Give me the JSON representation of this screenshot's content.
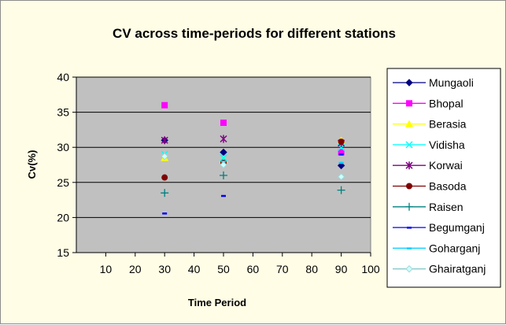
{
  "chart_data": {
    "type": "scatter",
    "title": "CV across time-periods for different stations",
    "xlabel": "Time Period",
    "ylabel": "Cv(%)",
    "xlim": [
      0,
      100
    ],
    "ylim": [
      15,
      40
    ],
    "xticks": [
      10,
      20,
      30,
      40,
      50,
      60,
      70,
      80,
      90,
      100
    ],
    "yticks": [
      15,
      20,
      25,
      30,
      35,
      40
    ],
    "grid": "horizontal",
    "legend_position": "right",
    "plot_background": "#c0c0c0",
    "page_background": "#fffde6",
    "series": [
      {
        "name": "Mungaoli",
        "color": "#000080",
        "marker": "diamond",
        "x": [
          30,
          50,
          90
        ],
        "y": [
          31.0,
          29.3,
          27.4
        ]
      },
      {
        "name": "Bhopal",
        "color": "#ff00ff",
        "marker": "square",
        "x": [
          30,
          50,
          90
        ],
        "y": [
          36.0,
          33.5,
          29.3
        ]
      },
      {
        "name": "Berasia",
        "color": "#ffff00",
        "marker": "triangle",
        "x": [
          30,
          50,
          90
        ],
        "y": [
          28.5,
          28.3,
          31.0
        ]
      },
      {
        "name": "Vidisha",
        "color": "#00ffff",
        "marker": "x",
        "x": [
          30,
          50,
          90
        ],
        "y": [
          29.0,
          28.5,
          30.0
        ]
      },
      {
        "name": "Korwai",
        "color": "#800080",
        "marker": "star",
        "x": [
          30,
          50,
          90
        ],
        "y": [
          31.0,
          31.2,
          30.6
        ]
      },
      {
        "name": "Basoda",
        "color": "#800000",
        "marker": "circle",
        "x": [
          30,
          50,
          90
        ],
        "y": [
          25.7,
          27.8,
          30.8
        ]
      },
      {
        "name": "Raisen",
        "color": "#008080",
        "marker": "plus",
        "x": [
          30,
          50,
          90
        ],
        "y": [
          23.5,
          26.0,
          23.9
        ]
      },
      {
        "name": "Begumganj",
        "color": "#0000ff",
        "marker": "dash",
        "x": [
          30,
          50,
          90
        ],
        "y": [
          20.6,
          23.1,
          29.0
        ]
      },
      {
        "name": "Goharganj",
        "color": "#00ccff",
        "marker": "dash",
        "x": [
          30,
          50,
          90
        ],
        "y": [
          28.8,
          28.0,
          27.8
        ]
      },
      {
        "name": "Ghairatganj",
        "color": "#ccffff",
        "marker": "diamond",
        "x": [
          30,
          50,
          90
        ],
        "y": [
          28.7,
          27.5,
          25.8
        ]
      }
    ]
  }
}
